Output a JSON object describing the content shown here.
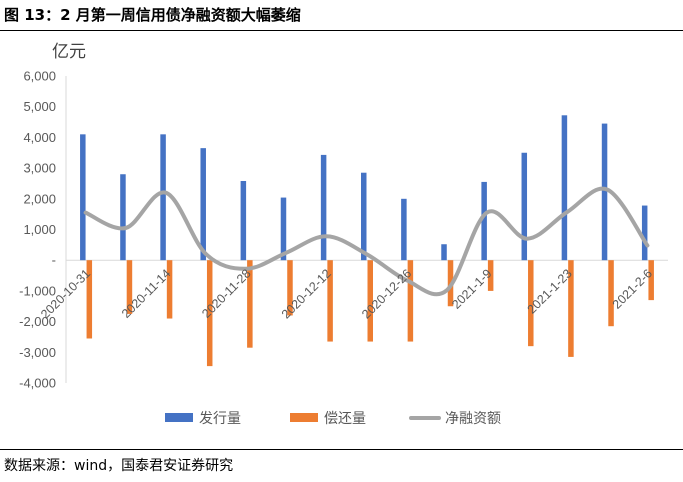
{
  "figure": {
    "title": "图 13：2 月第一周信用债净融资额大幅萎缩",
    "source": "数据来源：wind，国泰君安证券研究"
  },
  "chart_data": {
    "type": "bar",
    "unit_label": "亿元",
    "ylim": [
      -4000,
      6000
    ],
    "yticks": [
      "6,000",
      "5,000",
      "4,000",
      "3,000",
      "2,000",
      "1,000",
      "-",
      "-1,000",
      "-2,000",
      "-3,000",
      "-4,000"
    ],
    "ytick_values": [
      6000,
      5000,
      4000,
      3000,
      2000,
      1000,
      0,
      -1000,
      -2000,
      -3000,
      -4000
    ],
    "grid": false,
    "legend_position": "bottom",
    "x_tick_labels": [
      "2020-10-31",
      "2020-11-14",
      "2020-11-28",
      "2020-12-12",
      "2020-12-26",
      "2021-1-9",
      "2021-1-23",
      "2021-2-6"
    ],
    "x_tick_indices": [
      0,
      2,
      4,
      6,
      8,
      10,
      12,
      14
    ],
    "n_periods": 15,
    "series": [
      {
        "name": "发行量",
        "kind": "bar",
        "color": "#4472C4",
        "values": [
          4100,
          2800,
          4100,
          3650,
          2580,
          2040,
          3430,
          2850,
          2000,
          520,
          2550,
          3500,
          4720,
          4450,
          1780
        ]
      },
      {
        "name": "偿还量",
        "kind": "bar",
        "color": "#ED7D31",
        "values": [
          -2550,
          -1750,
          -1900,
          -3450,
          -2850,
          -1800,
          -2650,
          -2650,
          -2650,
          -1500,
          -1000,
          -2800,
          -3150,
          -2150,
          -1300
        ]
      },
      {
        "name": "净融资额",
        "kind": "smooth-line",
        "color": "#A5A5A5",
        "values": [
          1550,
          1050,
          2200,
          200,
          -280,
          240,
          780,
          200,
          -650,
          -980,
          1550,
          700,
          1570,
          2300,
          480
        ]
      }
    ]
  }
}
